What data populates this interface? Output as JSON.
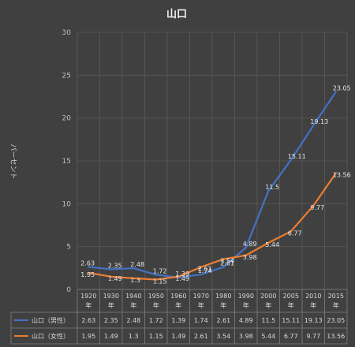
{
  "chart_data": {
    "type": "line",
    "title": "山口",
    "ylabel": "パーセント",
    "xlabel": "",
    "ylim": [
      0,
      30
    ],
    "yticks": [
      0,
      5,
      10,
      15,
      20,
      25,
      30
    ],
    "categories": [
      "1920年",
      "1930年",
      "1940年",
      "1950年",
      "1960年",
      "1970年",
      "1980年",
      "1990年",
      "2000年",
      "2005年",
      "2010年",
      "2015年"
    ],
    "grid": true,
    "legend": "data-table",
    "series": [
      {
        "name": "山口（男性）",
        "color": "#4472c4",
        "values": [
          2.63,
          2.35,
          2.48,
          1.72,
          1.39,
          1.74,
          2.61,
          4.89,
          11.5,
          15.11,
          19.13,
          23.05
        ],
        "labels": [
          "2.63",
          "2.35",
          "2.48",
          "1.72",
          "1.39",
          "1.74",
          "2.61",
          "4.89",
          "11.5",
          "15.11",
          "19.13",
          "23.05"
        ]
      },
      {
        "name": "山口（女性）",
        "color": "#ed7d31",
        "values": [
          1.95,
          1.49,
          1.3,
          1.15,
          1.49,
          2.61,
          3.54,
          3.98,
          5.44,
          6.77,
          9.77,
          13.56
        ],
        "labels": [
          "1.95",
          "1.49",
          "1.3",
          "1.15",
          "1.49",
          "2.61",
          "3.54",
          "3.98",
          "5.44",
          "6.77",
          "9.77",
          "13.56"
        ]
      }
    ]
  }
}
